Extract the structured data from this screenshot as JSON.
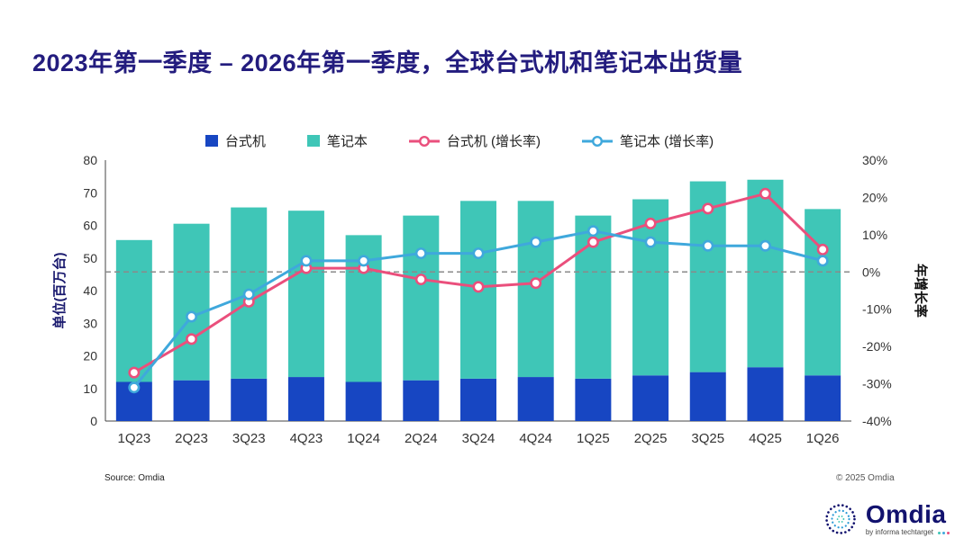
{
  "title": "2023年第一季度 – 2026年第一季度，全球台式机和笔记本出货量",
  "source": "Source: Omdia",
  "copyright": "© 2025 Omdia",
  "logo": {
    "name": "Omdia",
    "tagline": "by informa techtarget"
  },
  "colors": {
    "title": "#231c7e",
    "desktop_bar": "#1746c2",
    "laptop_bar": "#3fc6b7",
    "desktop_line": "#ea4f7c",
    "laptop_line": "#3fa8dc",
    "zero_line": "#8a8a8a",
    "axis": "#444444",
    "tick_text": "#333333"
  },
  "chart_data": {
    "type": "bar",
    "subtype": "stacked-bar-with-lines",
    "categories": [
      "1Q23",
      "2Q23",
      "3Q23",
      "4Q23",
      "1Q24",
      "2Q24",
      "3Q24",
      "4Q24",
      "1Q25",
      "2Q25",
      "3Q25",
      "4Q25",
      "1Q26"
    ],
    "series": [
      {
        "name": "台式机",
        "type": "bar",
        "axis": "left",
        "color": "#1746c2",
        "values": [
          12,
          12.5,
          13,
          13.5,
          12,
          12.5,
          13,
          13.5,
          13,
          14,
          15,
          16.5,
          14
        ]
      },
      {
        "name": "笔记本",
        "type": "bar",
        "axis": "left",
        "color": "#3fc6b7",
        "values": [
          43.5,
          48,
          52.5,
          51,
          45,
          50.5,
          54.5,
          54,
          50,
          54,
          58.5,
          57.5,
          51
        ]
      },
      {
        "name": "台式机 (增长率)",
        "type": "line",
        "axis": "right",
        "color": "#ea4f7c",
        "values": [
          -27,
          -18,
          -8,
          1,
          1,
          -2,
          -4,
          -3,
          8,
          13,
          17,
          21,
          6
        ]
      },
      {
        "name": "笔记本 (增长率)",
        "type": "line",
        "axis": "right",
        "color": "#3fa8dc",
        "values": [
          -31,
          -12,
          -6,
          3,
          3,
          5,
          5,
          8,
          11,
          8,
          7,
          7,
          3
        ]
      }
    ],
    "left_axis": {
      "label": "单位(百万台)",
      "min": 0,
      "max": 80,
      "step": 10
    },
    "right_axis": {
      "label": "年增长率",
      "min": -40,
      "max": 30,
      "step": 10,
      "suffix": "%"
    },
    "zero_reference_line": true,
    "grid": false,
    "legend_position": "top"
  }
}
